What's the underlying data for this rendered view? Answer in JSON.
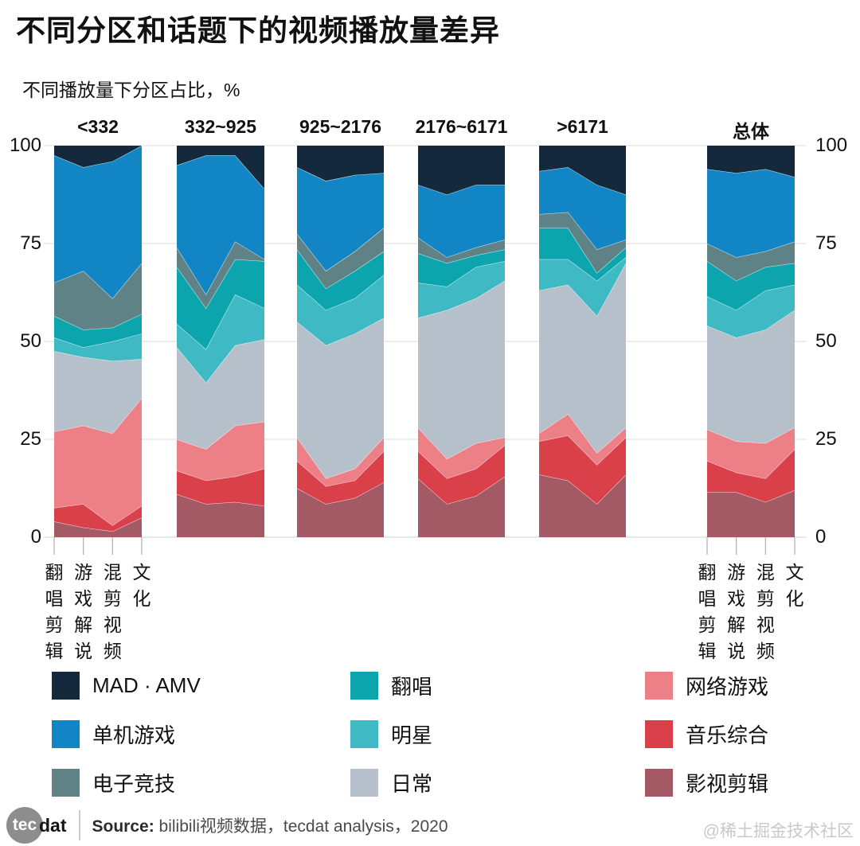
{
  "title": "不同分区和话题下的视频播放量差异",
  "subtitle": "不同播放量下分区占比，%",
  "watermark": "@稀土掘金技术社区",
  "footer": {
    "logo_circle_text": "tec",
    "logo_rest_text": "dat",
    "source_label": "Source:",
    "source_text": "bilibili视频数据，tecdat analysis，2020"
  },
  "legend": {
    "items": [
      {
        "label": "MAD · AMV"
      },
      {
        "label": "单机游戏"
      },
      {
        "label": "电子竞技"
      },
      {
        "label": "翻唱"
      },
      {
        "label": "明星"
      },
      {
        "label": "日常"
      },
      {
        "label": "网络游戏"
      },
      {
        "label": "音乐综合"
      },
      {
        "label": "影视剪辑"
      }
    ]
  },
  "chart_data": {
    "type": "area",
    "stacked": true,
    "unit": "%",
    "grid": true,
    "legend_position": "bottom",
    "ylim": [
      0,
      100
    ],
    "y_ticks": [
      0,
      25,
      50,
      75,
      100
    ],
    "x_labels": [
      "翻唱剪辑",
      "游戏解说",
      "混剪视频",
      "文化"
    ],
    "series": [
      {
        "name": "影视剪辑",
        "color": "#a35a64"
      },
      {
        "name": "音乐综合",
        "color": "#d9404a"
      },
      {
        "name": "网络游戏",
        "color": "#ed7f86"
      },
      {
        "name": "日常",
        "color": "#b6c0ca"
      },
      {
        "name": "明星",
        "color": "#3fbac5"
      },
      {
        "name": "翻唱",
        "color": "#0da5ad"
      },
      {
        "name": "电子竞技",
        "color": "#5f8287"
      },
      {
        "name": "单机游戏",
        "color": "#1285c5"
      },
      {
        "name": "MAD · AMV",
        "color": "#15293c"
      }
    ],
    "groups": [
      {
        "label": "<332",
        "values": [
          [
            4,
            2.5,
            1.5,
            5
          ],
          [
            3.5,
            6,
            1.5,
            3
          ],
          [
            19.5,
            20,
            23.5,
            27.5
          ],
          [
            20.5,
            17.5,
            18.5,
            10
          ],
          [
            3.5,
            2.5,
            5,
            6.5
          ],
          [
            5.5,
            4.5,
            3.5,
            5
          ],
          [
            8.5,
            15,
            7.5,
            13
          ],
          [
            32.5,
            26.5,
            35,
            30
          ],
          [
            2.5,
            5.5,
            4,
            0
          ]
        ]
      },
      {
        "label": "332~925",
        "values": [
          [
            11,
            8.5,
            9,
            8
          ],
          [
            6,
            6,
            6.5,
            9.5
          ],
          [
            8,
            8,
            13,
            12
          ],
          [
            23.5,
            17,
            20.5,
            21
          ],
          [
            6,
            8.5,
            13,
            8
          ],
          [
            14.5,
            10.5,
            9,
            12
          ],
          [
            5,
            3.5,
            4.5,
            0.5
          ],
          [
            21,
            35.5,
            22,
            18
          ],
          [
            5,
            2.5,
            2.5,
            11
          ]
        ]
      },
      {
        "label": "925~2176",
        "values": [
          [
            12.5,
            8.5,
            10,
            14
          ],
          [
            7,
            4.5,
            4.5,
            8
          ],
          [
            6,
            2,
            3,
            3.5
          ],
          [
            29.5,
            34,
            34.5,
            30.5
          ],
          [
            9.5,
            9,
            9,
            11
          ],
          [
            9,
            5.5,
            7,
            6
          ],
          [
            4,
            4.5,
            5,
            6
          ],
          [
            17,
            23,
            19.5,
            14
          ],
          [
            5.5,
            9,
            7.5,
            7
          ]
        ]
      },
      {
        "label": "2176~6171",
        "values": [
          [
            15,
            8.5,
            10.5,
            15.5
          ],
          [
            7,
            6.5,
            7,
            8
          ],
          [
            6,
            5,
            6.5,
            2
          ],
          [
            28,
            38,
            37,
            40
          ],
          [
            9,
            6,
            8,
            5
          ],
          [
            7.5,
            6,
            3,
            3
          ],
          [
            4,
            1.5,
            2,
            2.5
          ],
          [
            13.5,
            16,
            16,
            14
          ],
          [
            10,
            12.5,
            10,
            10
          ]
        ]
      },
      {
        "label": ">6171",
        "values": [
          [
            16,
            14.5,
            8.5,
            16
          ],
          [
            8.5,
            11.5,
            10,
            9.5
          ],
          [
            2,
            5.5,
            3,
            2.5
          ],
          [
            36.5,
            33,
            35,
            42
          ],
          [
            8,
            6.5,
            9,
            1.5
          ],
          [
            8,
            8,
            2,
            2.5
          ],
          [
            3.5,
            4,
            6,
            2
          ],
          [
            11,
            11.5,
            16.5,
            11.5
          ],
          [
            6.5,
            5.5,
            10,
            12.5
          ]
        ]
      },
      {
        "label": "总体",
        "values": [
          [
            11.5,
            11.5,
            9,
            12
          ],
          [
            8,
            5,
            6,
            10.5
          ],
          [
            8,
            8,
            9,
            5.5
          ],
          [
            26.5,
            26.5,
            29,
            30
          ],
          [
            7.5,
            7,
            10,
            6.5
          ],
          [
            9,
            7.5,
            6,
            5.5
          ],
          [
            4.5,
            6,
            4,
            5.5
          ],
          [
            19,
            21.5,
            21,
            16.5
          ],
          [
            6,
            7,
            6,
            8
          ]
        ]
      }
    ]
  }
}
